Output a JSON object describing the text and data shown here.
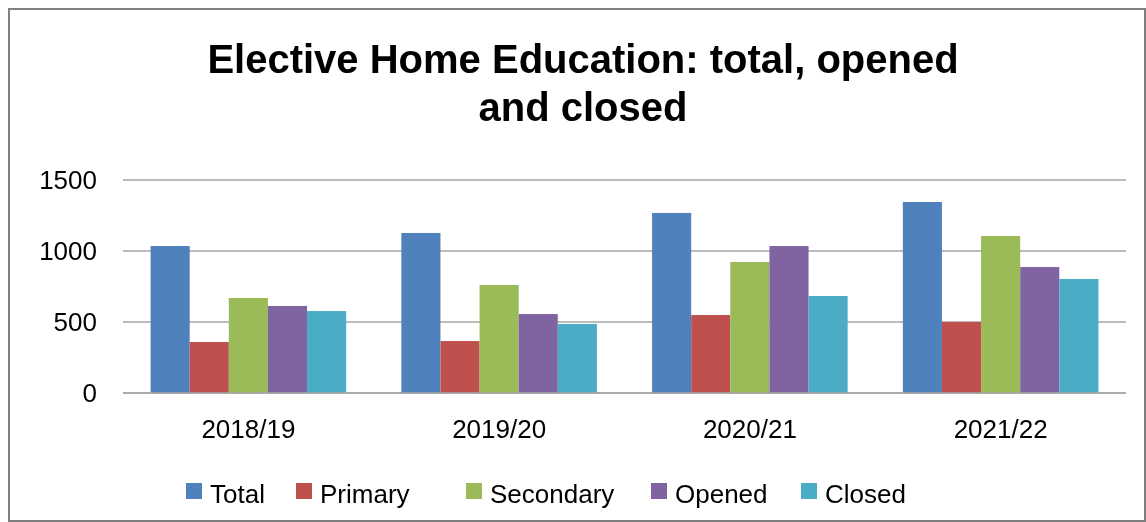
{
  "chart_data": {
    "type": "bar",
    "title": "Elective Home Education: total, opened and closed",
    "categories": [
      "2018/19",
      "2019/20",
      "2020/21",
      "2021/22"
    ],
    "series": [
      {
        "name": "Total",
        "color": "#4f81bd",
        "values": [
          1035,
          1127,
          1268,
          1345
        ]
      },
      {
        "name": "Primary",
        "color": "#c0504d",
        "values": [
          359,
          366,
          549,
          500
        ]
      },
      {
        "name": "Secondary",
        "color": "#9bbb59",
        "values": [
          669,
          761,
          923,
          1106
        ]
      },
      {
        "name": "Opened",
        "color": "#8064a2",
        "values": [
          613,
          556,
          1035,
          887
        ]
      },
      {
        "name": "Closed",
        "color": "#4bacc6",
        "values": [
          577,
          486,
          683,
          803
        ]
      }
    ],
    "ylim": [
      0,
      1500
    ],
    "yticks": [
      0,
      500,
      1000,
      1500
    ],
    "grid": "y",
    "legend": "bottom"
  }
}
